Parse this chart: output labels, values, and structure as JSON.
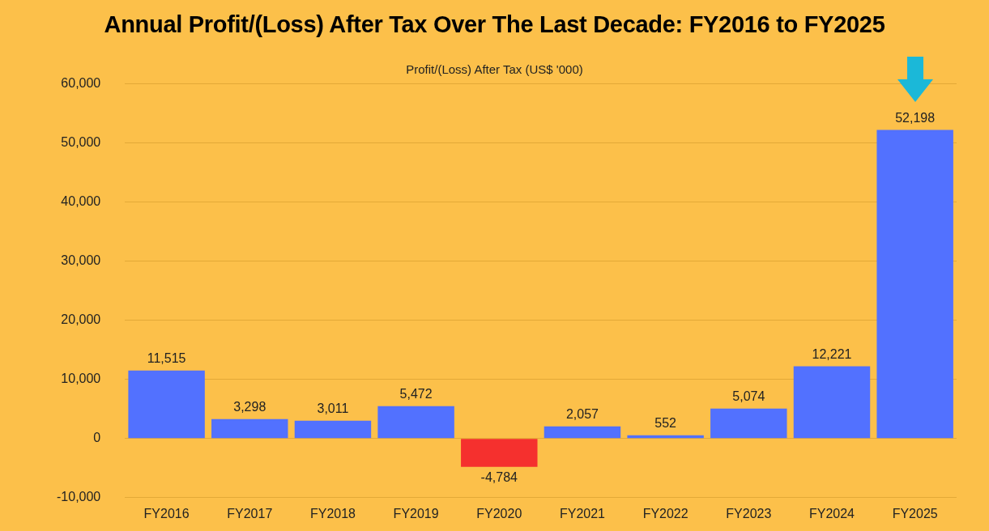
{
  "chart_data": {
    "type": "bar",
    "title": "Annual Profit/(Loss) After Tax Over The Last Decade: FY2016 to FY2025",
    "subtitle": "Profit/(Loss) After Tax (US$ '000)",
    "categories": [
      "FY2016",
      "FY2017",
      "FY2018",
      "FY2019",
      "FY2020",
      "FY2021",
      "FY2022",
      "FY2023",
      "FY2024",
      "FY2025"
    ],
    "values": [
      11515,
      3298,
      3011,
      5472,
      -4784,
      2057,
      552,
      5074,
      12221,
      52198
    ],
    "colors": [
      "#5271ff",
      "#5271ff",
      "#5271ff",
      "#5271ff",
      "#f5302e",
      "#5271ff",
      "#5271ff",
      "#5271ff",
      "#5271ff",
      "#5271ff"
    ],
    "value_labels": [
      "11,515",
      "3,298",
      "3,011",
      "5,472",
      "-4,784",
      "2,057",
      "552",
      "5,074",
      "12,221",
      "52,198"
    ],
    "ylim": [
      -10000,
      60000
    ],
    "yticks": [
      {
        "value": -10000,
        "label": "-10,000"
      },
      {
        "value": 0,
        "label": "0"
      },
      {
        "value": 10000,
        "label": "10,000"
      },
      {
        "value": 20000,
        "label": "20,000"
      },
      {
        "value": 30000,
        "label": "30,000"
      },
      {
        "value": 40000,
        "label": "40,000"
      },
      {
        "value": 50000,
        "label": "50,000"
      },
      {
        "value": 60000,
        "label": "60,000"
      }
    ],
    "grid": "y",
    "legend": false
  }
}
